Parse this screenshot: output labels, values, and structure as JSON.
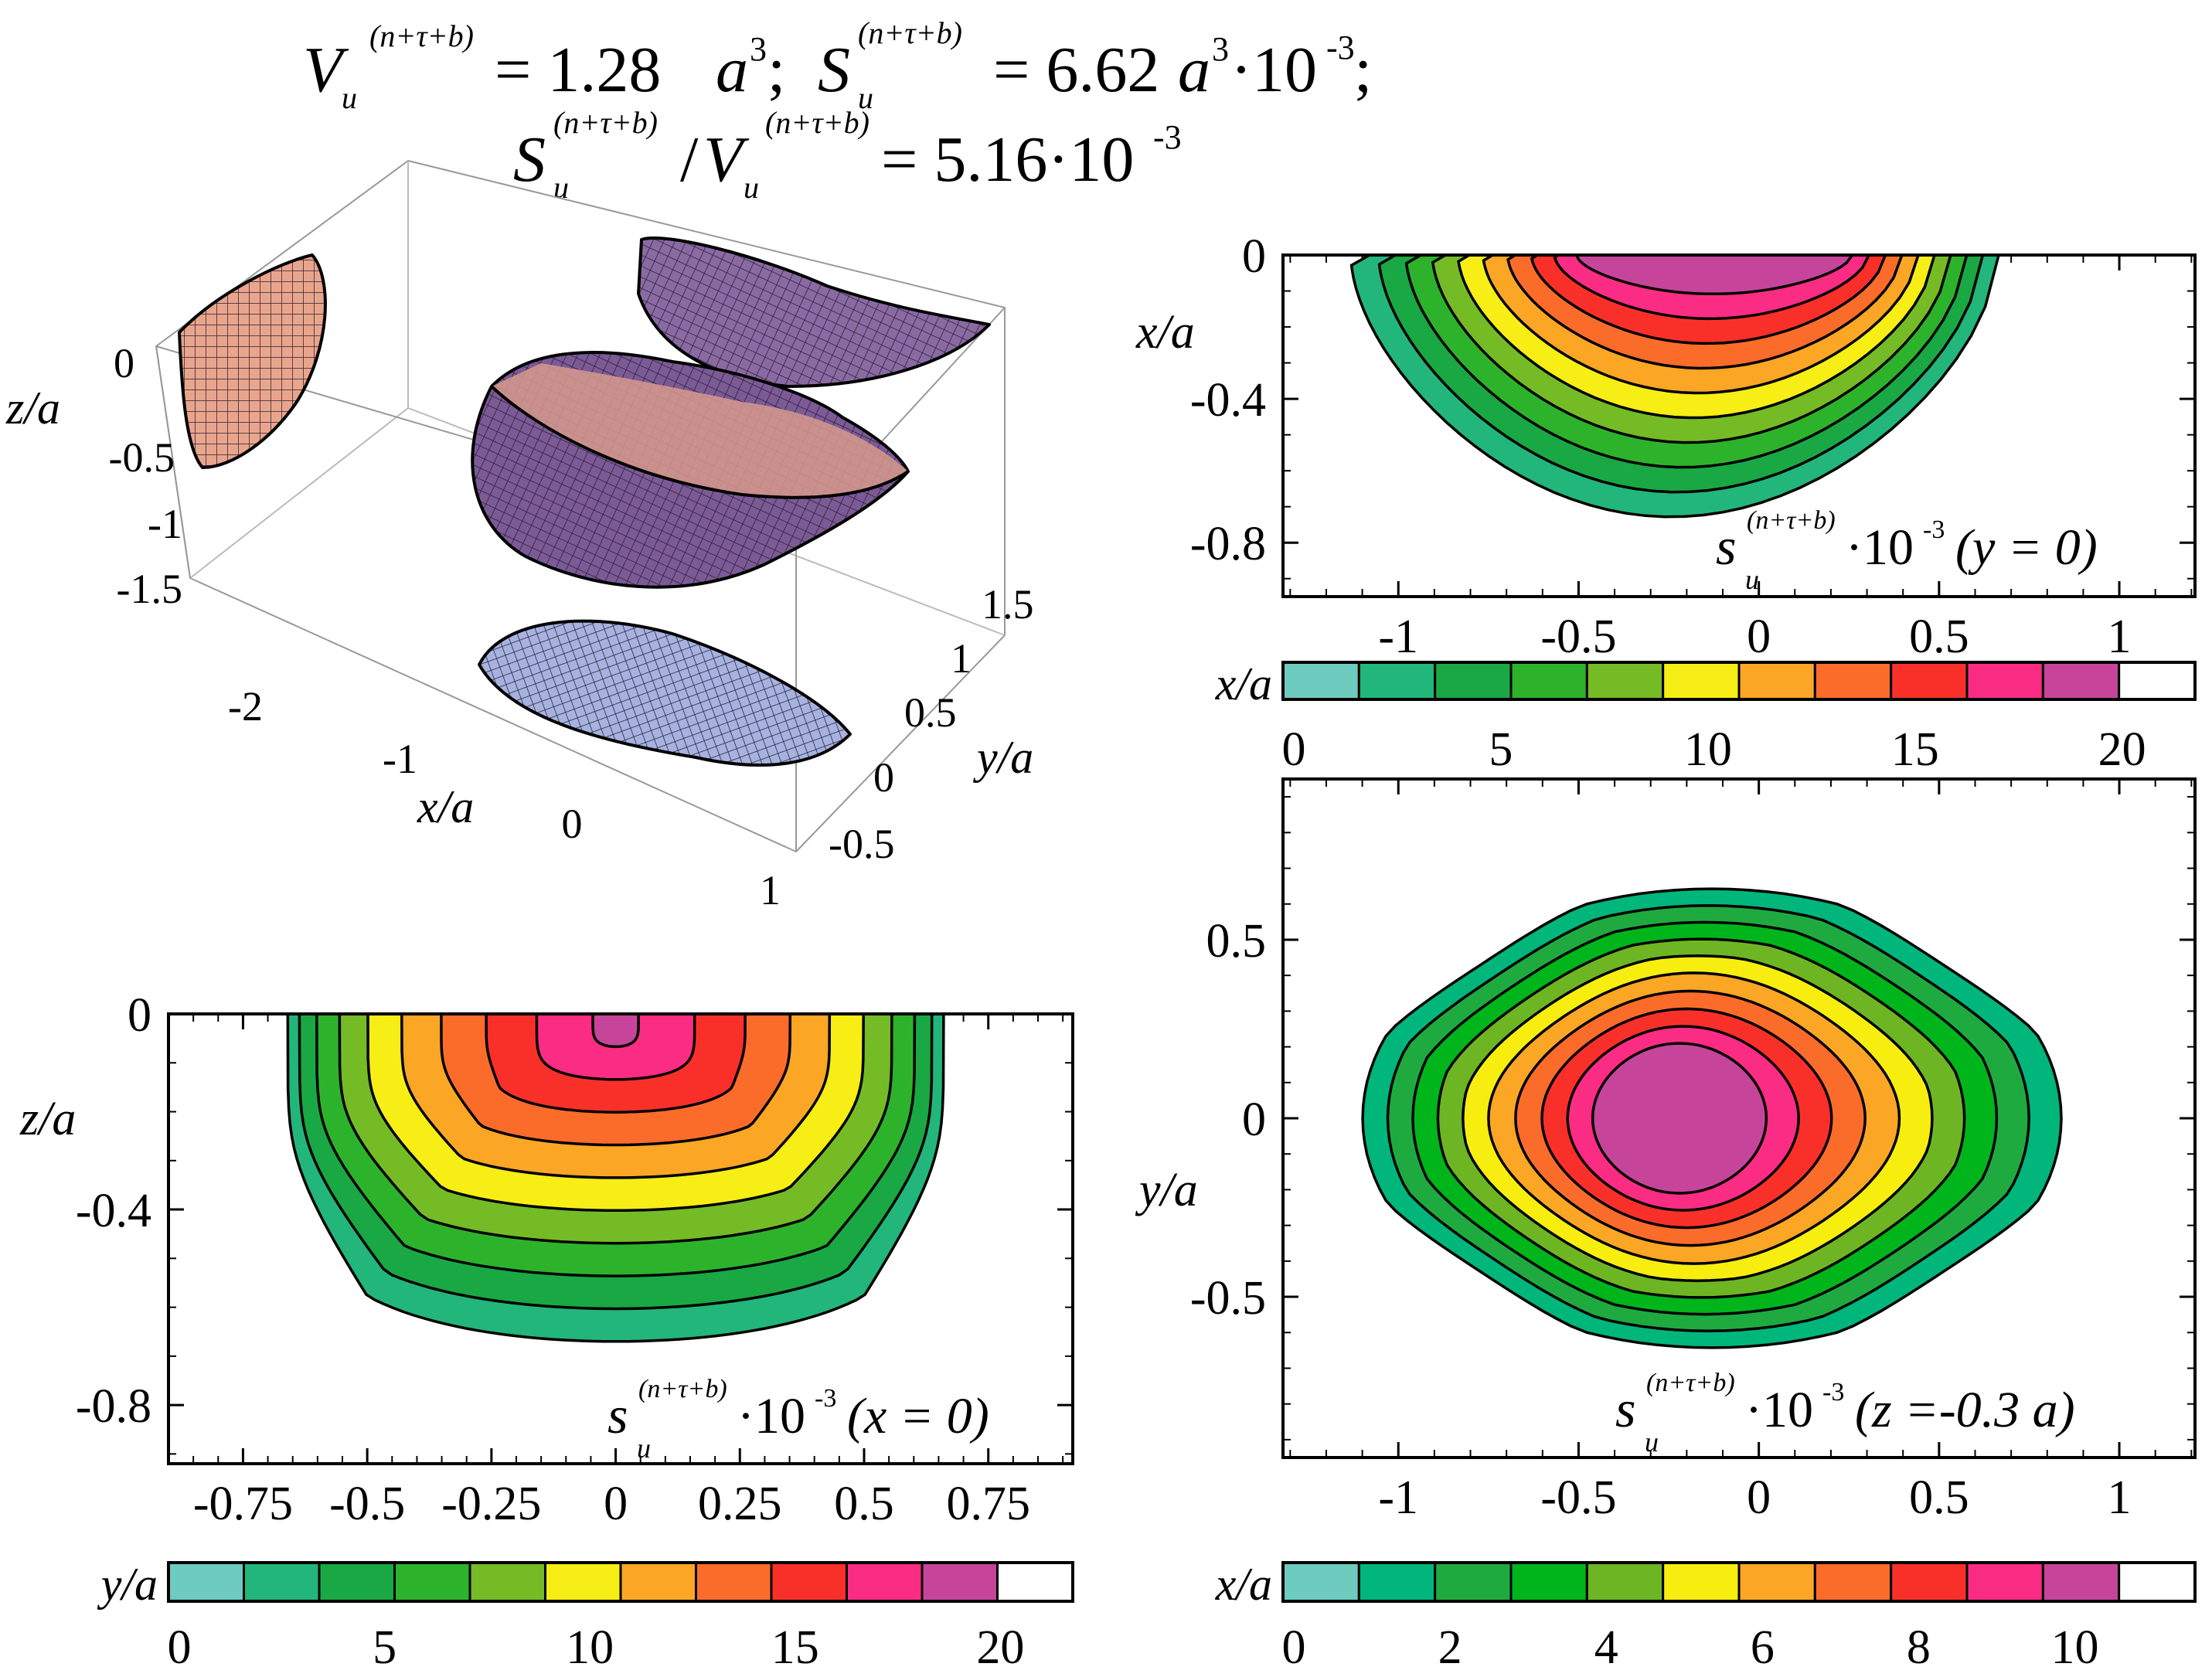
{
  "header": {
    "line1_V": "V",
    "sub_u": "u",
    "sup": "(n+τ+b)",
    "eq1": "= 1.28",
    "a": "a",
    "cube": "3",
    "sep": ";",
    "line1_S": "S",
    "eq2": "= 6.62",
    "times_1e_3": "·10",
    "exp_m3": "-3",
    "line2_eq": "= 5.16·10",
    "slash": "/"
  },
  "colors": {
    "scale": [
      "#6dcbbf",
      "#22b67a",
      "#19a843",
      "#2db32b",
      "#75bb25",
      "#f6ee14",
      "#fba624",
      "#fb6c2a",
      "#f9302a",
      "#fb2c83",
      "#c6459a",
      "#ffffff"
    ],
    "scale_z": [
      "#6dcbbf",
      "#00b67a",
      "#1faa40",
      "#00b51b",
      "#6eb523",
      "#f7ee10",
      "#fba624",
      "#fb6c2a",
      "#f9302a",
      "#fb2c83",
      "#c6459a",
      "#ffffff"
    ]
  },
  "chart_data": [
    {
      "id": "surface3d",
      "type": "surface3d",
      "xlabel": "x/a",
      "ylabel": "y/a",
      "zlabel": "z/a",
      "x_ticks": [
        "-2",
        "-1",
        "0",
        "1"
      ],
      "y_ticks": [
        "-0.5",
        "0",
        "0.5",
        "1",
        "1.5"
      ],
      "z_ticks": [
        "0",
        "-0.5",
        "-1",
        "-1.5"
      ],
      "volume": 1.28,
      "surface": 6.62,
      "ratio": 5.16
    },
    {
      "id": "contour_y0",
      "type": "heatmap",
      "title_main": "s",
      "title_sub": "u",
      "title_sup": "(n+τ+b)",
      "title_tail": "·10",
      "title_exp": "-3",
      "title_cond": "(y = 0)",
      "xlabel": "x/a",
      "ylabel": "x/a",
      "x_ticks": [
        "-1",
        "-0.5",
        "0",
        "0.5",
        "1"
      ],
      "y_ticks": [
        "0",
        "-0.4",
        "-0.8"
      ],
      "xlim": [
        -1.32,
        1.21
      ],
      "ylim": [
        -0.95,
        0
      ],
      "levels": 10,
      "colorbar_label": "x/a",
      "colorbar_ticks": [
        "0",
        "5",
        "10",
        "15",
        "20"
      ],
      "colorbar_range": [
        0,
        21.5
      ]
    },
    {
      "id": "contour_x0",
      "type": "heatmap",
      "title_main": "s",
      "title_sub": "u",
      "title_sup": "(n+τ+b)",
      "title_tail": "·10",
      "title_exp": "-3",
      "title_cond": "(x = 0)",
      "xlabel": "y/a",
      "ylabel": "z/a",
      "x_ticks": [
        "-0.75",
        "-0.5",
        "-0.25",
        "0",
        "0.25",
        "0.5",
        "0.75"
      ],
      "y_ticks": [
        "0",
        "-0.4",
        "-0.8"
      ],
      "xlim": [
        -0.9,
        0.92
      ],
      "ylim": [
        -0.92,
        0
      ],
      "levels": 10,
      "colorbar_label": "y/a",
      "colorbar_ticks": [
        "0",
        "5",
        "10",
        "15",
        "20"
      ],
      "colorbar_range": [
        0,
        21.5
      ]
    },
    {
      "id": "contour_z03",
      "type": "heatmap",
      "title_main": "s",
      "title_sub": "u",
      "title_sup": "(n+τ+b)",
      "title_tail": "·10",
      "title_exp": "-3",
      "title_cond": "(z =-0.3 a)",
      "xlabel": "x/a",
      "ylabel": "y/a",
      "x_ticks": [
        "-1",
        "-0.5",
        "0",
        "0.5",
        "1"
      ],
      "y_ticks": [
        "0.5",
        "0",
        "-0.5"
      ],
      "xlim": [
        -1.32,
        1.21
      ],
      "ylim": [
        -0.95,
        0.95
      ],
      "levels": 10,
      "colorbar_label": "x/a",
      "colorbar_ticks": [
        "0",
        "2",
        "4",
        "6",
        "8",
        "10"
      ],
      "colorbar_range": [
        0,
        11.4
      ]
    }
  ]
}
